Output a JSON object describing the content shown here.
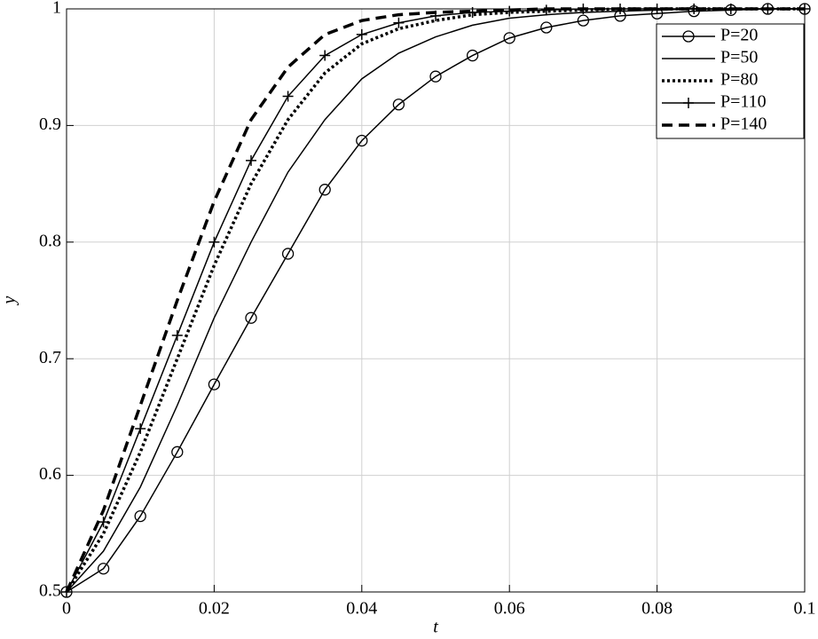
{
  "chart_data": {
    "type": "line",
    "x_label": "t",
    "y_label": "y",
    "x": [
      0,
      0.005,
      0.01,
      0.015,
      0.02,
      0.025,
      0.03,
      0.035,
      0.04,
      0.045,
      0.05,
      0.055,
      0.06,
      0.065,
      0.07,
      0.075,
      0.08,
      0.085,
      0.09,
      0.095,
      0.1
    ],
    "series": [
      {
        "name": "P=20",
        "color": "#000000",
        "line_style": "solid",
        "marker": "circle",
        "values": [
          0.5,
          0.52,
          0.565,
          0.62,
          0.678,
          0.735,
          0.79,
          0.845,
          0.887,
          0.918,
          0.942,
          0.96,
          0.975,
          0.984,
          0.99,
          0.994,
          0.996,
          0.998,
          0.999,
          1,
          1
        ]
      },
      {
        "name": "P=50",
        "color": "#000000",
        "line_style": "solid",
        "marker": "none",
        "values": [
          0.5,
          0.535,
          0.59,
          0.66,
          0.735,
          0.8,
          0.86,
          0.905,
          0.94,
          0.962,
          0.976,
          0.986,
          0.992,
          0.995,
          0.997,
          0.998,
          0.999,
          1,
          1,
          1,
          1
        ]
      },
      {
        "name": "P=80",
        "color": "#000000",
        "line_style": "dotted",
        "marker": "none",
        "values": [
          0.5,
          0.55,
          0.62,
          0.7,
          0.78,
          0.85,
          0.905,
          0.945,
          0.97,
          0.983,
          0.99,
          0.995,
          0.997,
          0.998,
          0.999,
          1,
          1,
          1,
          1,
          1,
          1
        ]
      },
      {
        "name": "P=110",
        "color": "#000000",
        "line_style": "solid",
        "marker": "plus",
        "values": [
          0.5,
          0.56,
          0.64,
          0.72,
          0.8,
          0.87,
          0.925,
          0.96,
          0.978,
          0.988,
          0.994,
          0.997,
          0.998,
          0.999,
          1,
          1,
          1,
          1,
          1,
          1,
          1
        ]
      },
      {
        "name": "P=140",
        "color": "#000000",
        "line_style": "dashed",
        "marker": "none",
        "values": [
          0.5,
          0.57,
          0.66,
          0.75,
          0.835,
          0.905,
          0.95,
          0.978,
          0.99,
          0.995,
          0.997,
          0.998,
          0.999,
          1,
          1,
          1,
          1,
          1,
          1,
          1,
          1
        ]
      }
    ],
    "xlim": [
      0,
      0.1
    ],
    "xticks": [
      0,
      0.02,
      0.04,
      0.06,
      0.08,
      0.1
    ],
    "ylim": [
      0.5,
      1
    ],
    "yticks": [
      0.5,
      0.6,
      0.7,
      0.8,
      0.9,
      1
    ],
    "grid": true,
    "legend": "top-right"
  }
}
